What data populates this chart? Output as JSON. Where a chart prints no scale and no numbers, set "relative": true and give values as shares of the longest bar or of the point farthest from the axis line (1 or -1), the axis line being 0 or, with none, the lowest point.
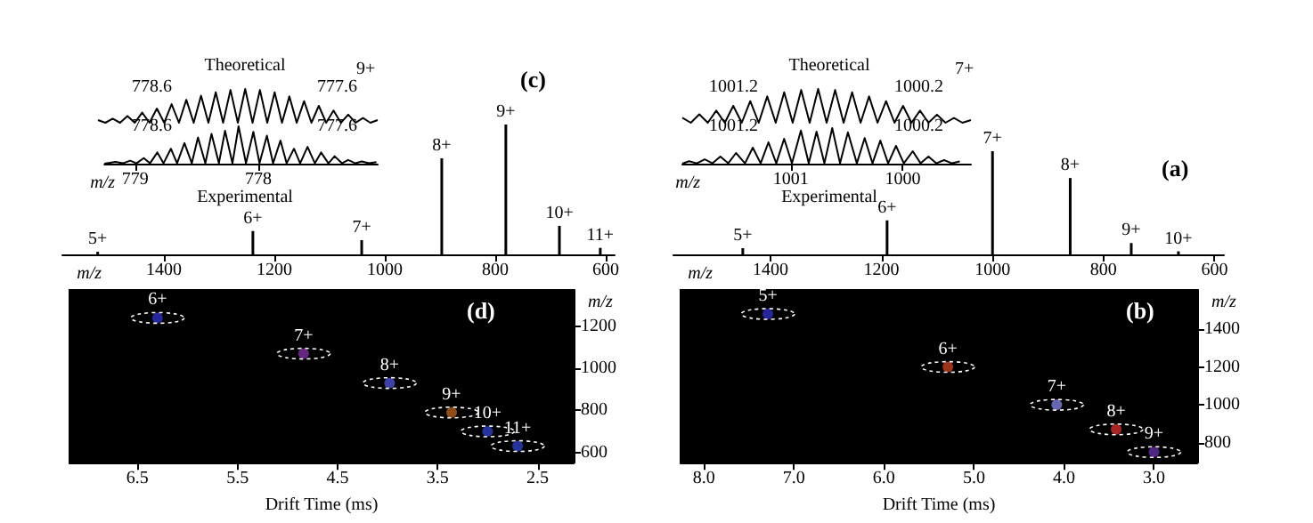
{
  "chart_data": [
    {
      "type": "bar",
      "title": "(c)",
      "xlabel": "m/z",
      "relative": true,
      "color": "#000000",
      "x": [
        610,
        684,
        781,
        897,
        1042,
        1239,
        1520
      ],
      "values": [
        0.05,
        0.22,
        1,
        0.74,
        0.11,
        0.18,
        0.02
      ],
      "xlim": [
        1584,
        584
      ],
      "xticks": [
        600,
        800,
        1000,
        1200,
        1400
      ],
      "annotations": [
        {
          "text": "11+",
          "x": 610,
          "y": 0.05
        },
        {
          "text": "10+",
          "x": 684,
          "y": 0.22
        },
        {
          "text": "9+",
          "x": 781,
          "y": 1
        },
        {
          "text": "8+",
          "x": 897,
          "y": 0.74
        },
        {
          "text": "7+",
          "x": 1042,
          "y": 0.11
        },
        {
          "text": "6+",
          "x": 1239,
          "y": 0.18
        },
        {
          "text": "5+",
          "x": 1520,
          "y": 0.02
        }
      ]
    },
    {
      "type": "line",
      "title": "Theoretical",
      "relative": true,
      "color": "#000000",
      "tick_labels": false,
      "categories": [
        null,
        null,
        null,
        null,
        null,
        null,
        null,
        null,
        null,
        null,
        null,
        null,
        null,
        null,
        null,
        null,
        null,
        null,
        null,
        null,
        null,
        null,
        null,
        null,
        null,
        null,
        null,
        null,
        null,
        null,
        null,
        null,
        null,
        null,
        null,
        null,
        null,
        null,
        null
      ],
      "values": [
        0.08,
        0,
        0.12,
        0,
        0.2,
        0,
        0.3,
        0,
        0.42,
        0,
        0.55,
        0,
        0.68,
        0,
        0.8,
        0,
        0.9,
        0,
        0.97,
        0,
        1.0,
        0,
        0.97,
        0,
        0.9,
        0,
        0.78,
        0,
        0.64,
        0,
        0.5,
        0,
        0.36,
        0,
        0.24,
        0,
        0.14,
        0,
        0.08
      ],
      "annotations": [
        "9+",
        "777.6",
        "778.6"
      ]
    },
    {
      "type": "line",
      "title": "Experimental",
      "xlabel": "m/z",
      "relative": true,
      "color": "#000000",
      "xlim": [
        779.25,
        777.03
      ],
      "xticks": [
        778,
        779
      ],
      "x": [
        777.04,
        777.1,
        777.16,
        777.21,
        777.27,
        777.32,
        777.38,
        777.43,
        777.49,
        777.54,
        777.6,
        777.66,
        777.71,
        777.77,
        777.82,
        777.88,
        777.93,
        777.99,
        778.04,
        778.1,
        778.16,
        778.21,
        778.27,
        778.32,
        778.38,
        778.43,
        778.49,
        778.54,
        778.6,
        778.66,
        778.71,
        778.77,
        778.82,
        778.88,
        778.93,
        778.99,
        779.04,
        779.1,
        779.16,
        779.25
      ],
      "values": [
        0.04,
        0.01,
        0.06,
        0.01,
        0.1,
        0.01,
        0.2,
        0.01,
        0.3,
        0.01,
        0.45,
        0.01,
        0.4,
        0.01,
        0.62,
        0.01,
        0.75,
        0.01,
        0.85,
        0.01,
        1.0,
        0.01,
        0.88,
        0.01,
        0.8,
        0.01,
        0.7,
        0.01,
        0.55,
        0.01,
        0.4,
        0.01,
        0.3,
        0.01,
        0.15,
        0.01,
        0.08,
        0.01,
        0.05,
        0
      ],
      "annotations": [
        "777.6",
        "778.6"
      ]
    },
    {
      "type": "bar",
      "title": "(a)",
      "xlabel": "m/z",
      "relative": true,
      "color": "#000000",
      "x": [
        665,
        750,
        860,
        1000,
        1190,
        1450
      ],
      "values": [
        0.03,
        0.11,
        0.74,
        1,
        0.33,
        0.06
      ],
      "xlim": [
        1575,
        583
      ],
      "xticks": [
        600,
        800,
        1000,
        1200,
        1400
      ],
      "annotations": [
        {
          "text": "10+",
          "x": 665,
          "y": 0.03
        },
        {
          "text": "9+",
          "x": 750,
          "y": 0.11
        },
        {
          "text": "8+",
          "x": 860,
          "y": 0.74
        },
        {
          "text": "7+",
          "x": 1000,
          "y": 1
        },
        {
          "text": "6+",
          "x": 1190,
          "y": 0.33
        },
        {
          "text": "5+",
          "x": 1450,
          "y": 0.06
        }
      ]
    },
    {
      "type": "line",
      "title": "Theoretical",
      "relative": true,
      "color": "#000000",
      "tick_labels": false,
      "categories": [
        null,
        null,
        null,
        null,
        null,
        null,
        null,
        null,
        null,
        null,
        null,
        null,
        null,
        null,
        null,
        null,
        null,
        null,
        null,
        null,
        null,
        null,
        null,
        null,
        null,
        null,
        null,
        null,
        null,
        null,
        null,
        null,
        null,
        null,
        null
      ],
      "values": [
        0.15,
        0,
        0.25,
        0,
        0.36,
        0,
        0.5,
        0,
        0.64,
        0,
        0.78,
        0,
        0.9,
        0,
        0.97,
        0,
        1.0,
        0,
        0.97,
        0,
        0.9,
        0,
        0.78,
        0,
        0.64,
        0,
        0.5,
        0,
        0.36,
        0,
        0.24,
        0,
        0.14,
        0,
        0.08
      ],
      "annotations": [
        "7+",
        "1000.2",
        "1001.2"
      ]
    },
    {
      "type": "line",
      "title": "Experimental",
      "xlabel": "m/z",
      "relative": true,
      "color": "#000000",
      "xlim": [
        1001.97,
        999.39
      ],
      "xticks": [
        1000,
        1001
      ],
      "x": [
        999.49,
        999.56,
        999.63,
        999.7,
        999.77,
        999.84,
        999.91,
        999.99,
        1000.06,
        1000.13,
        1000.2,
        1000.27,
        1000.34,
        1000.41,
        1000.49,
        1000.56,
        1000.63,
        1000.7,
        1000.77,
        1000.84,
        1000.91,
        1000.99,
        1001.06,
        1001.13,
        1001.2,
        1001.27,
        1001.34,
        1001.41,
        1001.49,
        1001.56,
        1001.63,
        1001.7,
        1001.77,
        1001.84,
        1001.91,
        1001.97
      ],
      "values": [
        0.06,
        0.01,
        0.1,
        0.01,
        0.2,
        0.01,
        0.35,
        0.01,
        0.5,
        0.01,
        0.65,
        0.01,
        0.72,
        0.01,
        0.88,
        0.01,
        1.0,
        0.01,
        0.9,
        0.01,
        0.93,
        0.01,
        0.7,
        0.01,
        0.6,
        0.01,
        0.45,
        0.01,
        0.3,
        0.01,
        0.2,
        0.01,
        0.12,
        0.01,
        0.07,
        0
      ],
      "annotations": [
        "1000.2",
        "1001.2"
      ]
    },
    {
      "type": "scatter",
      "title": "(d)",
      "xlabel": "Drift Time (ms)",
      "ylabel": "m/z",
      "marker": "circle",
      "x": [
        6.3,
        4.84,
        3.98,
        3.36,
        3.0,
        2.7
      ],
      "values": [
        1240,
        1070,
        930,
        790,
        700,
        630
      ],
      "colors": [
        "#3030c0",
        "#8030a0",
        "#5050d0",
        "#b06020",
        "#3040c0",
        "#3040c0"
      ],
      "xlim": [
        7.18,
        2.14
      ],
      "ylim": [
        551,
        1373
      ],
      "xticks": [
        6.5,
        5.5,
        4.5,
        3.5,
        2.5
      ],
      "yticks": [
        600,
        800,
        1000,
        1200
      ],
      "annotations": [
        {
          "text": "6+",
          "x": 6.3,
          "y": 1240
        },
        {
          "text": "7+",
          "x": 4.84,
          "y": 1070
        },
        {
          "text": "8+",
          "x": 3.98,
          "y": 930
        },
        {
          "text": "9+",
          "x": 3.36,
          "y": 790
        },
        {
          "text": "10+",
          "x": 3.0,
          "y": 700
        },
        {
          "text": "11+",
          "x": 2.7,
          "y": 630
        }
      ]
    },
    {
      "type": "scatter",
      "title": "(b)",
      "xlabel": "Drift Time (ms)",
      "ylabel": "m/z",
      "marker": "circle",
      "x": [
        7.29,
        5.29,
        4.08,
        3.42,
        3.0
      ],
      "values": [
        1480,
        1200,
        1000,
        870,
        750
      ],
      "colors": [
        "#3030c0",
        "#c04020",
        "#8080e0",
        "#d03030",
        "#6030a0"
      ],
      "xlim": [
        8.26,
        2.52
      ],
      "ylim": [
        694,
        1607
      ],
      "xticks": [
        {
          "value": 8,
          "label": "8.0"
        },
        {
          "value": 7,
          "label": "7.0"
        },
        {
          "value": 6,
          "label": "6.0"
        },
        {
          "value": 5,
          "label": "5.0"
        },
        {
          "value": 4,
          "label": "4.0"
        },
        {
          "value": 3,
          "label": "3.0"
        }
      ],
      "yticks": [
        800,
        1000,
        1200,
        1400
      ],
      "annotations": [
        {
          "text": "5+",
          "x": 7.29,
          "y": 1480
        },
        {
          "text": "6+",
          "x": 5.29,
          "y": 1200
        },
        {
          "text": "7+",
          "x": 4.08,
          "y": 1000
        },
        {
          "text": "8+",
          "x": 3.42,
          "y": 870
        },
        {
          "text": "9+",
          "x": 3.0,
          "y": 750
        }
      ]
    }
  ]
}
